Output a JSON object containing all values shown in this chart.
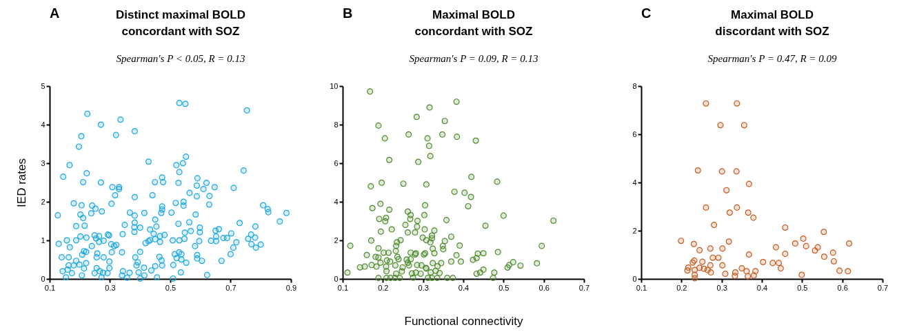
{
  "chart_data": [
    {
      "type": "scatter",
      "title": "Distinct maximal BOLD\nconcordant with SOZ",
      "subtitle": "Spearman's P < 0.05, R = 0.13",
      "annotations": [
        "A"
      ],
      "ylabel": "IED rates",
      "marker": "circle",
      "xlim": [
        0.1,
        0.9
      ],
      "xticks": [
        0.1,
        0.3,
        0.5,
        0.7,
        0.9
      ],
      "ylim": [
        0,
        5
      ],
      "yticks": [
        0,
        1,
        2,
        3,
        4,
        5
      ],
      "series": [
        {
          "color": "#1aa7e0",
          "x": [
            0.53,
            0.55,
            0.754,
            0.225,
            0.335,
            0.27,
            0.382,
            0.205,
            0.32,
            0.197,
            0.552,
            0.428,
            0.52,
            0.542,
            0.166,
            0.53,
            0.743,
            0.145,
            0.223,
            0.473,
            0.59,
            0.211,
            0.27,
            0.449,
            0.476,
            0.527,
            0.62,
            0.588,
            0.61,
            0.647,
            0.308,
            0.33,
            0.33,
            0.71,
            0.317,
            0.441,
            0.564,
            0.382,
            0.588,
            0.63,
            0.18,
            0.206,
            0.241,
            0.252,
            0.273,
            0.305,
            0.518,
            0.544,
            0.544,
            0.629,
            0.808,
            0.823,
            0.825,
            0.885,
            0.863,
            0.127,
            0.202,
            0.211,
            0.238,
            0.188,
            0.216,
            0.366,
            0.382,
            0.414,
            0.473,
            0.473,
            0.47,
            0.504,
            0.584,
            0.45,
            0.382,
            0.563,
            0.527,
            0.349,
            0.381,
            0.4,
            0.433,
            0.454,
            0.381,
            0.342,
            0.598,
            0.598,
            0.568,
            0.548,
            0.547,
            0.65,
            0.661,
            0.652,
            0.73,
            0.782,
            0.768,
            0.781,
            0.702,
            0.688,
            0.676,
            0.758,
            0.769,
            0.8,
            0.784,
            0.719,
            0.709,
            0.7,
            0.652,
            0.635,
            0.596,
            0.582,
            0.589,
            0.589,
            0.605,
            0.67,
            0.622,
            0.508,
            0.53,
            0.515,
            0.537,
            0.529,
            0.521,
            0.537,
            0.553,
            0.51,
            0.535,
            0.509,
            0.481,
            0.466,
            0.45,
            0.466,
            0.445,
            0.433,
            0.428,
            0.418,
            0.4,
            0.384,
            0.392,
            0.388,
            0.413,
            0.395,
            0.414,
            0.4,
            0.437,
            0.45,
            0.456,
            0.464,
            0.471,
            0.473,
            0.34,
            0.343,
            0.34,
            0.357,
            0.365,
            0.297,
            0.293,
            0.279,
            0.264,
            0.254,
            0.249,
            0.264,
            0.222,
            0.202,
            0.188,
            0.157,
            0.167,
            0.13,
            0.24,
            0.304,
            0.314,
            0.321,
            0.306,
            0.221,
            0.214,
            0.208,
            0.258,
            0.256,
            0.279,
            0.298,
            0.298,
            0.163,
            0.14,
            0.188,
            0.18,
            0.163,
            0.221,
            0.199,
            0.214,
            0.143,
            0.16,
            0.174,
            0.154,
            0.207,
            0.249,
            0.256,
            0.266,
            0.277,
            0.272,
            0.292
          ],
          "values": [
            4.56,
            4.54,
            4.37,
            4.28,
            4.13,
            4.0,
            3.83,
            3.7,
            3.73,
            3.43,
            3.17,
            3.04,
            2.95,
            3.0,
            2.95,
            2.77,
            2.81,
            2.65,
            2.74,
            2.63,
            2.61,
            2.51,
            2.5,
            2.51,
            2.51,
            2.49,
            2.49,
            2.42,
            2.33,
            2.38,
            2.38,
            2.38,
            2.33,
            2.36,
            2.17,
            2.17,
            2.23,
            2.12,
            2.14,
            2.15,
            1.96,
            1.91,
            1.9,
            1.82,
            1.75,
            1.95,
            1.97,
            2.0,
            1.9,
            1.93,
            1.91,
            1.81,
            1.73,
            1.71,
            1.49,
            1.65,
            1.67,
            1.58,
            1.7,
            1.37,
            1.38,
            1.72,
            1.64,
            1.71,
            1.88,
            1.8,
            1.71,
            1.72,
            1.67,
            1.54,
            1.46,
            1.47,
            1.43,
            1.4,
            1.34,
            1.33,
            1.28,
            1.36,
            1.22,
            1.16,
            1.33,
            1.21,
            1.24,
            1.2,
            1.04,
            1.25,
            1.29,
            1.1,
            1.45,
            1.36,
            1.15,
            1.07,
            1.18,
            1.06,
            1.06,
            1.04,
            0.9,
            0.89,
            0.81,
            0.95,
            0.81,
            0.64,
            0.98,
            0.99,
            0.98,
            0.85,
            0.62,
            0.53,
            0.47,
            0.47,
            0.1,
            1.0,
            1.0,
            0.64,
            0.64,
            0.69,
            0.54,
            0.5,
            0.42,
            0.36,
            0.17,
            0.01,
            1.14,
            1.11,
            1.03,
            0.96,
            1.17,
            1.01,
            0.98,
            0.93,
            0.7,
            0.56,
            0.43,
            0.35,
            0.29,
            0.17,
            0.09,
            0.01,
            0.22,
            0.33,
            0.04,
            0.57,
            0.48,
            0.35,
            0.69,
            0.2,
            0.09,
            0.03,
            0.16,
            1.13,
            1.15,
            0.99,
            1.11,
            1.05,
            1.13,
            0.96,
            1.07,
            1.1,
            1.0,
            1.0,
            0.82,
            0.91,
            0.85,
            0.9,
            0.85,
            0.88,
            0.69,
            0.7,
            0.72,
            0.63,
            0.66,
            0.56,
            0.56,
            0.45,
            0.28,
            0.56,
            0.56,
            0.47,
            0.35,
            0.35,
            0.41,
            0.37,
            0.27,
            0.2,
            0.24,
            0.15,
            0.04,
            0.09,
            0.15,
            0.28,
            0.2,
            0.16,
            0.04,
            0.15
          ]
        }
      ]
    },
    {
      "type": "scatter",
      "title": "Maximal BOLD\nconcordant with SOZ",
      "subtitle": "Spearman's P = 0.09, R = 0.13",
      "annotations": [
        "B"
      ],
      "xlabel": "Functional connectivity",
      "marker": "circle",
      "xlim": [
        0.1,
        0.7
      ],
      "xticks": [
        0.1,
        0.2,
        0.3,
        0.4,
        0.5,
        0.6,
        0.7
      ],
      "ylim": [
        0,
        10
      ],
      "yticks": [
        0,
        2,
        4,
        6,
        8,
        10
      ],
      "series": [
        {
          "color": "#4f8a2e",
          "x": [
            0.168,
            0.383,
            0.316,
            0.284,
            0.354,
            0.189,
            0.264,
            0.348,
            0.311,
            0.384,
            0.205,
            0.431,
            0.315,
            0.318,
            0.216,
            0.288,
            0.42,
            0.484,
            0.17,
            0.197,
            0.251,
            0.308,
            0.378,
            0.403,
            0.419,
            0.412,
            0.174,
            0.194,
            0.216,
            0.305,
            0.303,
            0.262,
            0.269,
            0.268,
            0.286,
            0.285,
            0.256,
            0.262,
            0.28,
            0.191,
            0.208,
            0.206,
            0.222,
            0.195,
            0.358,
            0.455,
            0.5,
            0.624,
            0.304,
            0.328,
            0.322,
            0.322,
            0.299,
            0.308,
            0.318,
            0.37,
            0.354,
            0.349,
            0.391,
            0.35,
            0.244,
            0.235,
            0.233,
            0.232,
            0.171,
            0.119,
            0.189,
            0.595,
            0.486,
            0.324,
            0.328,
            0.305,
            0.302,
            0.282,
            0.269,
            0.28,
            0.202,
            0.214,
            0.16,
            0.182,
            0.189,
            0.21,
            0.218,
            0.236,
            0.239,
            0.259,
            0.269,
            0.262,
            0.265,
            0.194,
            0.172,
            0.184,
            0.143,
            0.155,
            0.208,
            0.231,
            0.249,
            0.285,
            0.296,
            0.307,
            0.324,
            0.336,
            0.345,
            0.37,
            0.383,
            0.394,
            0.424,
            0.433,
            0.436,
            0.45,
            0.514,
            0.51,
            0.524,
            0.542,
            0.583,
            0.45,
            0.442,
            0.433,
            0.477,
            0.474,
            0.112,
            0.189,
            0.209,
            0.219,
            0.23,
            0.242,
            0.233,
            0.247,
            0.272,
            0.275,
            0.282,
            0.294,
            0.308,
            0.312,
            0.319,
            0.322,
            0.331,
            0.335,
            0.341,
            0.36,
            0.374,
            0.209
          ],
          "values": [
            9.72,
            9.19,
            8.89,
            8.4,
            8.19,
            7.95,
            7.49,
            7.49,
            7.29,
            7.37,
            7.29,
            7.17,
            6.9,
            6.37,
            6.17,
            6.07,
            5.29,
            5.04,
            4.8,
            4.99,
            4.94,
            4.9,
            4.52,
            4.47,
            4.25,
            3.77,
            3.67,
            3.89,
            3.59,
            3.82,
            3.31,
            3.49,
            3.31,
            3.11,
            3.01,
            2.71,
            2.8,
            2.41,
            2.41,
            3.11,
            3.17,
            2.99,
            2.57,
            2.45,
            3.05,
            2.76,
            3.28,
            3.02,
            2.57,
            2.51,
            2.25,
            2.11,
            2.14,
            2.01,
            1.9,
            2.19,
            1.96,
            1.71,
            1.73,
            1.54,
            2.01,
            1.9,
            1.71,
            1.45,
            1.99,
            1.72,
            1.59,
            1.71,
            1.39,
            1.57,
            1.33,
            1.33,
            1.27,
            1.33,
            1.36,
            1.27,
            1.36,
            1.36,
            1.24,
            1.14,
            1.11,
            0.96,
            0.9,
            1.14,
            1.02,
            1.0,
            1.02,
            0.84,
            0.7,
            0.84,
            0.72,
            0.64,
            0.6,
            0.64,
            0.64,
            0.7,
            0.6,
            0.72,
            0.7,
            0.57,
            0.82,
            0.66,
            0.82,
            0.9,
            1.23,
            0.9,
            0.99,
            1.08,
            1.31,
            1.33,
            0.72,
            0.59,
            0.87,
            0.69,
            0.81,
            0.48,
            0.33,
            0.27,
            0.33,
            0.05,
            0.33,
            0.05,
            0.05,
            0.05,
            0.05,
            0.05,
            0.27,
            0.39,
            0.28,
            0.06,
            0.33,
            0.27,
            0.54,
            0.05,
            0.34,
            0.05,
            0.42,
            0.05,
            0.3,
            0.05,
            0.05,
            0.4
          ]
        }
      ]
    },
    {
      "type": "scatter",
      "title": "Maximal BOLD\ndiscordant with SOZ",
      "subtitle": "Spearman's P = 0.47, R = 0.09",
      "annotations": [
        "C"
      ],
      "marker": "circle",
      "xlim": [
        0.1,
        0.7
      ],
      "xticks": [
        0.1,
        0.2,
        0.3,
        0.4,
        0.5,
        0.6,
        0.7
      ],
      "ylim": [
        0,
        8
      ],
      "yticks": [
        0,
        2,
        4,
        6,
        8
      ],
      "series": [
        {
          "color": "#c55a1e",
          "x": [
            0.261,
            0.338,
            0.297,
            0.356,
            0.241,
            0.301,
            0.337,
            0.368,
            0.312,
            0.261,
            0.338,
            0.32,
            0.366,
            0.379,
            0.281,
            0.458,
            0.554,
            0.199,
            0.503,
            0.318,
            0.231,
            0.483,
            0.617,
            0.51,
            0.435,
            0.539,
            0.272,
            0.302,
            0.245,
            0.532,
            0.577,
            0.458,
            0.368,
            0.278,
            0.292,
            0.555,
            0.579,
            0.232,
            0.228,
            0.252,
            0.403,
            0.427,
            0.442,
            0.272,
            0.302,
            0.217,
            0.245,
            0.256,
            0.265,
            0.215,
            0.233,
            0.35,
            0.447,
            0.273,
            0.362,
            0.384,
            0.593,
            0.614,
            0.334,
            0.309,
            0.233,
            0.333,
            0.365,
            0.38,
            0.499,
            0.233
          ],
          "values": [
            7.28,
            7.28,
            6.38,
            6.38,
            4.5,
            4.46,
            4.46,
            3.94,
            3.68,
            2.96,
            2.96,
            2.75,
            2.75,
            2.54,
            2.24,
            2.13,
            1.95,
            1.58,
            1.67,
            1.55,
            1.45,
            1.47,
            1.47,
            1.36,
            1.31,
            1.31,
            1.26,
            1.26,
            1.19,
            1.18,
            1.09,
            1.04,
            1.01,
            0.88,
            0.88,
            0.92,
            0.73,
            0.76,
            0.68,
            0.71,
            0.7,
            0.66,
            0.66,
            0.56,
            0.56,
            0.47,
            0.46,
            0.42,
            0.37,
            0.35,
            0.37,
            0.44,
            0.44,
            0.27,
            0.32,
            0.32,
            0.34,
            0.32,
            0.27,
            0.21,
            0.17,
            0.12,
            0.11,
            0.14,
            0.17,
            0.03
          ]
        }
      ]
    }
  ]
}
